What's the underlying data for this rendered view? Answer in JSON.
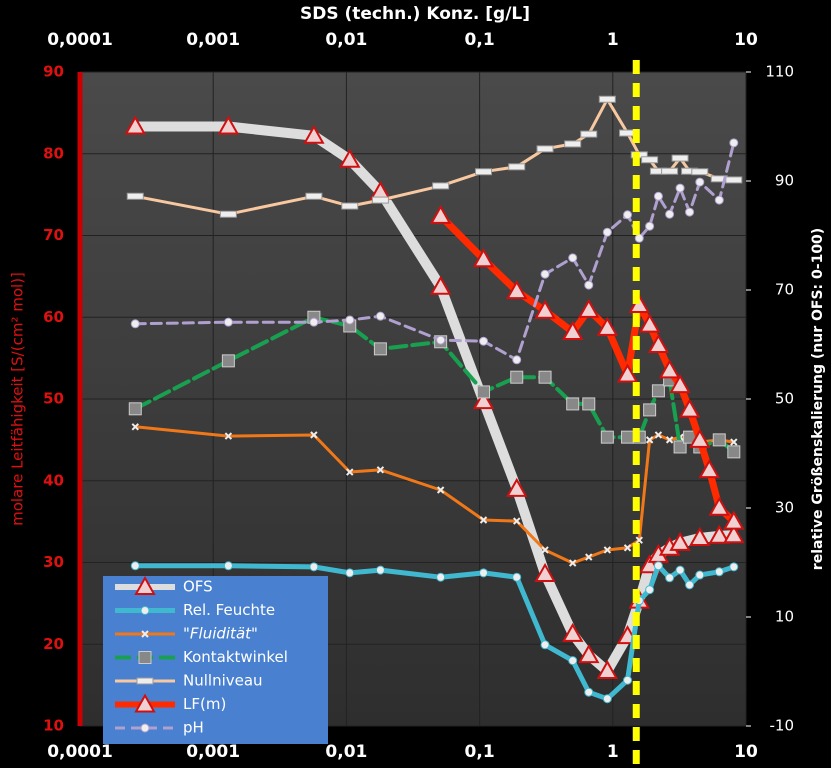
{
  "chart_data": {
    "type": "line",
    "title": "SDS  (techn.)  Konz. [g/L]",
    "ylabel": "molare Leitfähigkeit [S/(cm² mol)]",
    "y2label": "relative  Größenskalierung   (nur OFS: 0-100)",
    "xscale": "log",
    "grid": true,
    "xlim": [
      0.0001,
      10
    ],
    "xticks": [
      {
        "value": 0.0001,
        "label": "0,0001"
      },
      {
        "value": 0.001,
        "label": "0,001"
      },
      {
        "value": 0.01,
        "label": "0,01"
      },
      {
        "value": 0.1,
        "label": "0,1"
      },
      1,
      10
    ],
    "ylim": [
      10,
      90
    ],
    "yticks": [
      10,
      20,
      30,
      40,
      50,
      60,
      70,
      80,
      90
    ],
    "y2lim": [
      -10,
      110
    ],
    "y2ticks": [
      -10,
      10,
      30,
      50,
      70,
      90,
      110
    ],
    "vline": {
      "x": 1.5,
      "color": "#ffff00"
    },
    "series": [
      {
        "name": "OFS",
        "color": "#dddddd",
        "axis": "y2",
        "marker": "triangle",
        "width": 10,
        "x": [
          0.00026,
          0.0013,
          0.0057,
          0.0106,
          0.018,
          0.051,
          0.107,
          0.19,
          0.31,
          0.5,
          0.66,
          0.91,
          1.29,
          1.58,
          1.89,
          2.2,
          2.67,
          3.2,
          4.5,
          6.3,
          8.1
        ],
        "values": [
          100,
          100,
          98.3,
          93.9,
          88,
          70.6,
          49.6,
          33.5,
          17.9,
          6.9,
          3,
          0.1,
          6.5,
          13,
          19.5,
          21.4,
          22.7,
          23.6,
          24.5,
          24.9,
          25
        ]
      },
      {
        "name": "Rel. Feuchte",
        "color": "#3fb8d0",
        "axis": "y2",
        "marker": "circle",
        "width": 5,
        "x": [
          0.00026,
          0.0013,
          0.0057,
          0.0106,
          0.018,
          0.051,
          0.107,
          0.19,
          0.31,
          0.5,
          0.66,
          0.91,
          1.29,
          1.58,
          1.89,
          2.2,
          2.67,
          3.2,
          3.77,
          4.5,
          6.3,
          8.1
        ],
        "values": [
          19.4,
          19.4,
          19.2,
          18.1,
          18.6,
          17.3,
          18.1,
          17.3,
          4.9,
          2,
          -3.8,
          -5,
          -1.6,
          13,
          15,
          19.4,
          17.2,
          18.6,
          15.9,
          17.7,
          18.3,
          19.2
        ]
      },
      {
        "name": "\"Fluidität\"",
        "color": "#f07818",
        "axis": "y2",
        "marker": "cross",
        "width": 3,
        "x": [
          0.00026,
          0.0013,
          0.0057,
          0.0106,
          0.018,
          0.051,
          0.107,
          0.19,
          0.31,
          0.5,
          0.66,
          0.91,
          1.29,
          1.58,
          1.89,
          2.2,
          2.67,
          3.2,
          4.5,
          6.3,
          8.1
        ],
        "values": [
          44.9,
          43.2,
          43.4,
          36.6,
          37,
          33.3,
          27.8,
          27.6,
          22.3,
          19.9,
          21,
          22.3,
          22.7,
          24.1,
          42.5,
          43.4,
          42.5,
          43,
          42.1,
          42.5,
          42.1
        ]
      },
      {
        "name": "Kontaktwinkel",
        "color": "#18a050",
        "axis": "y2",
        "marker": "square",
        "width": 4,
        "dash": "16 6",
        "x": [
          0.00026,
          0.0013,
          0.0057,
          0.0106,
          0.018,
          0.051,
          0.107,
          0.19,
          0.31,
          0.5,
          0.66,
          0.91,
          1.29,
          1.58,
          1.89,
          2.2,
          2.67,
          3.2,
          3.77,
          4.5,
          6.3,
          8.1
        ],
        "values": [
          48.2,
          57,
          65,
          63.4,
          59.2,
          60.5,
          51.3,
          54,
          54,
          49.1,
          49.1,
          43,
          43,
          43,
          48,
          51.5,
          53.5,
          41.2,
          43,
          41.2,
          42.5,
          40.3
        ]
      },
      {
        "name": "Nullniveau",
        "color": "#f8c8a0",
        "axis": "y2",
        "marker": "dash",
        "width": 3,
        "x": [
          0.00026,
          0.0013,
          0.0057,
          0.0106,
          0.018,
          0.051,
          0.107,
          0.19,
          0.31,
          0.5,
          0.66,
          0.91,
          1.29,
          1.58,
          1.89,
          2.2,
          2.67,
          3.2,
          3.77,
          4.5,
          6.3,
          8.1
        ],
        "values": [
          87.2,
          83.9,
          87.2,
          85.4,
          86.5,
          89.1,
          91.7,
          92.6,
          95.9,
          96.8,
          98.6,
          105,
          98.8,
          94.8,
          93.9,
          91.8,
          91.8,
          94.2,
          91.8,
          91.7,
          90.4,
          90.2
        ]
      },
      {
        "name": "LF(m)",
        "color": "#ff2a00",
        "axis": "y",
        "marker": "triangle",
        "width": 7,
        "x": [
          0.051,
          0.107,
          0.19,
          0.31,
          0.5,
          0.66,
          0.91,
          1.29,
          1.58,
          1.89,
          2.2,
          2.67,
          3.2,
          3.77,
          4.5,
          5.3,
          6.3,
          8.1
        ],
        "values": [
          72.4,
          67.1,
          63.2,
          60.8,
          58.2,
          60.9,
          58.7,
          53,
          61.5,
          59.1,
          56.6,
          53.5,
          51.7,
          48.7,
          45,
          41.3,
          36.7,
          35
        ]
      },
      {
        "name": "pH",
        "color": "#b0a0d0",
        "axis": "y2",
        "marker": "circle",
        "width": 3,
        "dash": "10 6",
        "x": [
          0.00026,
          0.0013,
          0.0057,
          0.0106,
          0.018,
          0.051,
          0.107,
          0.19,
          0.31,
          0.5,
          0.66,
          0.91,
          1.29,
          1.58,
          1.89,
          2.2,
          2.67,
          3.2,
          3.77,
          4.5,
          6.3,
          8.1
        ],
        "values": [
          63.8,
          64.1,
          64.1,
          64.5,
          65.2,
          60.8,
          60.6,
          57.2,
          72.9,
          75.9,
          70.9,
          80.6,
          83.8,
          79.5,
          81.7,
          87.2,
          83.9,
          88.7,
          84.3,
          89.8,
          86.5,
          97
        ]
      }
    ]
  }
}
